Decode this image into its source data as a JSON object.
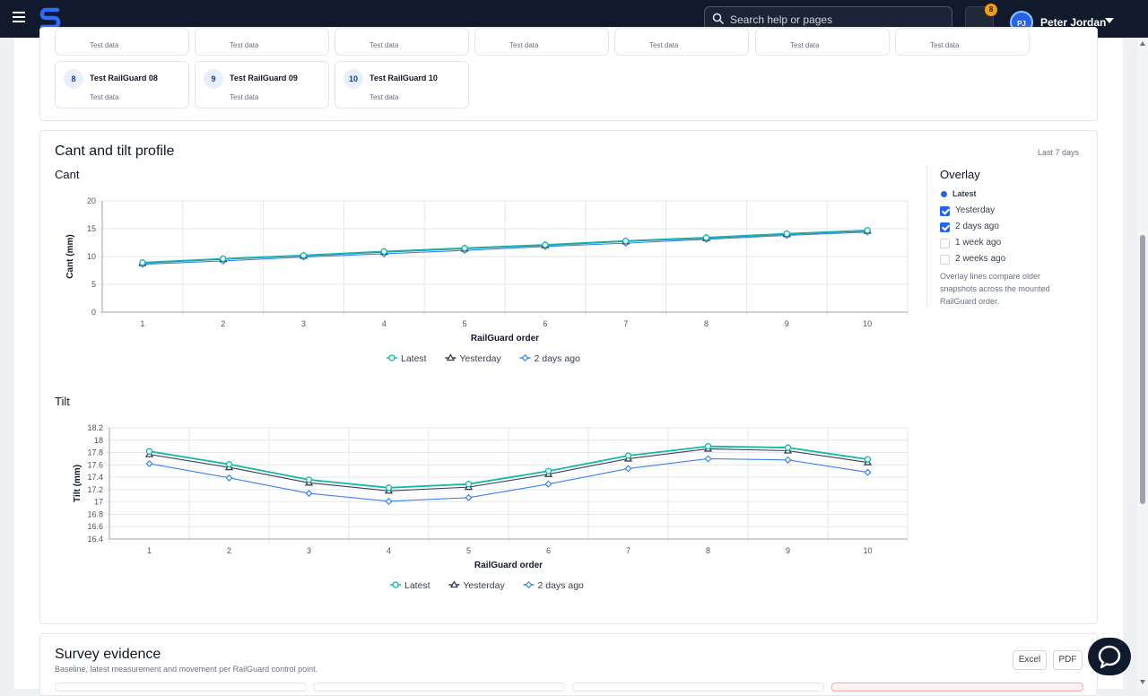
{
  "header": {
    "search_placeholder": "Search help or pages",
    "notification_count": "8",
    "user_initials": "PJ",
    "user_name": "Peter Jordan"
  },
  "railguards": {
    "top_row_sub": [
      "Test data",
      "Test data",
      "Test data",
      "Test data",
      "Test data",
      "Test data",
      "Test data"
    ],
    "items": [
      {
        "num": "8",
        "name": "Test RailGuard 08",
        "sub": "Test data"
      },
      {
        "num": "9",
        "name": "Test RailGuard 09",
        "sub": "Test data"
      },
      {
        "num": "10",
        "name": "Test RailGuard 10",
        "sub": "Test data"
      }
    ]
  },
  "profile": {
    "title": "Cant and tilt profile",
    "period": "Last 7 days"
  },
  "overlay": {
    "title": "Overlay",
    "items": [
      {
        "label": "Latest",
        "kind": "dot"
      },
      {
        "label": "Yesterday",
        "kind": "checkbox",
        "checked": true
      },
      {
        "label": "2 days ago",
        "kind": "checkbox",
        "checked": true
      },
      {
        "label": "1 week ago",
        "kind": "checkbox",
        "checked": false
      },
      {
        "label": "2 weeks ago",
        "kind": "checkbox",
        "checked": false
      }
    ],
    "note": "Overlay lines compare older snapshots across the mounted RailGuard order."
  },
  "chart_data": [
    {
      "type": "line",
      "title": "Cant",
      "xlabel": "RailGuard order",
      "ylabel": "Cant (mm)",
      "x": [
        1,
        2,
        3,
        4,
        5,
        6,
        7,
        8,
        9,
        10
      ],
      "ylim": [
        0,
        20
      ],
      "yticks": [
        0,
        5,
        10,
        15,
        20
      ],
      "grid": true,
      "legend": "bottom-center",
      "series": [
        {
          "name": "Latest",
          "color": "#14b8a6",
          "marker": "circle",
          "values": [
            8.9,
            9.6,
            10.2,
            10.9,
            11.5,
            12.1,
            12.8,
            13.4,
            14.1,
            14.7
          ]
        },
        {
          "name": "Yesterday",
          "color": "#374151",
          "marker": "triangle",
          "values": [
            8.8,
            9.5,
            10.1,
            10.8,
            11.4,
            12.0,
            12.7,
            13.3,
            14.0,
            14.6
          ]
        },
        {
          "name": "2 days ago",
          "color": "#3b82f6",
          "marker": "diamond",
          "values": [
            8.6,
            9.2,
            9.9,
            10.5,
            11.1,
            11.8,
            12.4,
            13.1,
            13.8,
            14.4
          ]
        }
      ]
    },
    {
      "type": "line",
      "title": "Tilt",
      "xlabel": "RailGuard order",
      "ylabel": "Tilt (mm)",
      "x": [
        1,
        2,
        3,
        4,
        5,
        6,
        7,
        8,
        9,
        10
      ],
      "ylim": [
        16.4,
        18.2
      ],
      "yticks": [
        "16.4",
        "16.6",
        "16.8",
        "17",
        "17.2",
        "17.4",
        "17.6",
        "17.8",
        "18",
        "18.2"
      ],
      "grid": true,
      "legend": "bottom-center",
      "series": [
        {
          "name": "Latest",
          "color": "#14b8a6",
          "marker": "circle",
          "values": [
            17.82,
            17.61,
            17.36,
            17.23,
            17.29,
            17.5,
            17.75,
            17.9,
            17.88,
            17.69
          ]
        },
        {
          "name": "Yesterday",
          "color": "#374151",
          "marker": "triangle",
          "values": [
            17.77,
            17.56,
            17.31,
            17.18,
            17.24,
            17.45,
            17.7,
            17.86,
            17.83,
            17.64
          ]
        },
        {
          "name": "2 days ago",
          "color": "#3b82f6",
          "marker": "diamond",
          "values": [
            17.62,
            17.39,
            17.14,
            17.01,
            17.07,
            17.29,
            17.54,
            17.7,
            17.68,
            17.48
          ]
        }
      ]
    }
  ],
  "survey": {
    "title": "Survey evidence",
    "subtitle": "Baseline, latest measurement and movement per RailGuard control point.",
    "excel_label": "Excel",
    "pdf_label": "PDF"
  }
}
